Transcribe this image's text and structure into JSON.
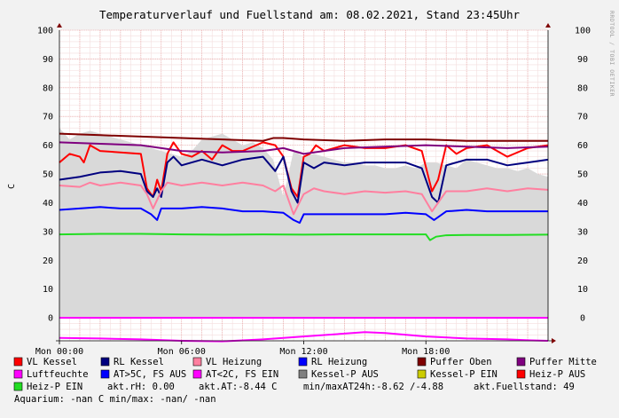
{
  "window": {
    "title": "Temperaturverlauf und Fuellstand am: 08.02.2021, Stand 23:45Uhr"
  },
  "watermark": "RRDTOOL / TOBI OETIKER",
  "chart_data": {
    "type": "line",
    "title": "Temperaturverlauf und Fuellstand am: 08.02.2021, Stand 23:45Uhr",
    "ylabel": "C",
    "ylim": [
      -8,
      100
    ],
    "xlim": [
      0,
      24
    ],
    "yticks": [
      0,
      10,
      20,
      30,
      40,
      50,
      60,
      70,
      80,
      90,
      100
    ],
    "yticks_right": [
      0,
      10,
      20,
      30,
      40,
      50,
      60,
      70,
      80,
      90,
      100
    ],
    "xticks": [
      {
        "x": 0,
        "label": "Mon 00:00"
      },
      {
        "x": 6,
        "label": "Mon 06:00"
      },
      {
        "x": 12,
        "label": "Mon 12:00"
      },
      {
        "x": 18,
        "label": "Mon 18:00"
      }
    ],
    "grid": true,
    "legend_position": "bottom",
    "fill": {
      "name": "Fuellstand",
      "color": "#d9d9d9",
      "x": [
        0,
        0.5,
        1,
        1.5,
        2,
        2.5,
        3,
        3.5,
        4,
        4.5,
        5,
        5.5,
        6,
        6.5,
        7,
        7.5,
        8,
        8.5,
        9,
        9.5,
        10,
        10.5,
        11,
        11.5,
        12,
        12.5,
        13,
        13.5,
        14,
        14.5,
        15,
        15.5,
        16,
        16.5,
        17,
        17.5,
        18,
        18.5,
        19,
        19.5,
        20,
        20.5,
        21,
        21.5,
        22,
        22.5,
        23,
        23.5,
        24
      ],
      "values": [
        66,
        62,
        64,
        65,
        64,
        63,
        62,
        61,
        60,
        59,
        58,
        57,
        56,
        58,
        62,
        63,
        64,
        62,
        60,
        61,
        59,
        55,
        42,
        58,
        56,
        57,
        56,
        55,
        54,
        54,
        53,
        53,
        52,
        52,
        53,
        52,
        54,
        54,
        53,
        52,
        55,
        54,
        53,
        52,
        52,
        51,
        52,
        50,
        49
      ]
    },
    "series": [
      {
        "name": "VL Kessel",
        "color": "#ff0000",
        "width": 2,
        "x": [
          0,
          0.5,
          1,
          1.2,
          1.5,
          2,
          3,
          4,
          4.3,
          4.6,
          4.8,
          5,
          5.3,
          5.6,
          6,
          6.5,
          7,
          7.5,
          8,
          8.5,
          9,
          10,
          10.6,
          11,
          11.4,
          11.7,
          12,
          12.3,
          12.6,
          13,
          13.5,
          14,
          15,
          16,
          17,
          17.8,
          18.3,
          18.6,
          19,
          19.5,
          20,
          21,
          22,
          23,
          24
        ],
        "values": [
          54,
          57,
          56,
          54,
          60,
          58,
          57.5,
          57,
          45,
          42,
          48,
          44,
          57,
          61,
          57,
          56,
          58,
          55,
          60,
          58,
          58,
          61,
          60,
          56,
          45,
          42,
          56,
          57,
          60,
          58,
          59,
          60,
          59,
          59,
          60,
          58,
          44,
          48,
          60,
          57,
          59,
          60,
          56,
          59,
          60
        ]
      },
      {
        "name": "RL Kessel",
        "color": "#00007f",
        "width": 2,
        "x": [
          0,
          1,
          2,
          3,
          4,
          4.3,
          4.6,
          4.8,
          5,
          5.3,
          5.6,
          6,
          7,
          8,
          9,
          10,
          10.6,
          11,
          11.4,
          11.7,
          12,
          12.5,
          13,
          14,
          15,
          16,
          17,
          17.8,
          18.3,
          18.6,
          19,
          20,
          21,
          22,
          23,
          24
        ],
        "values": [
          48,
          49,
          50.5,
          51,
          50,
          44,
          42,
          45,
          42,
          54,
          56,
          53,
          55,
          53,
          55,
          56,
          51,
          56,
          44,
          40,
          54,
          52,
          54,
          53,
          54,
          54,
          54,
          52,
          42,
          40,
          53,
          55,
          55,
          53,
          54,
          55
        ]
      },
      {
        "name": "VL Heizung",
        "color": "#ff7f9f",
        "width": 2,
        "x": [
          0,
          1,
          1.5,
          2,
          3,
          4,
          4.3,
          4.6,
          5,
          5.3,
          6,
          7,
          8,
          9,
          10,
          10.6,
          11,
          11.5,
          12,
          12.5,
          13,
          14,
          15,
          16,
          17,
          17.8,
          18.3,
          18.6,
          19,
          20,
          21,
          22,
          23,
          24
        ],
        "values": [
          46,
          45.5,
          47,
          46,
          47,
          46,
          43,
          38,
          44,
          47,
          46,
          47,
          46,
          47,
          46,
          44,
          46,
          36,
          43,
          45,
          44,
          43,
          44,
          43.5,
          44,
          43,
          37,
          40,
          44,
          44,
          45,
          44,
          45,
          44.5
        ]
      },
      {
        "name": "RL Heizung",
        "color": "#0000ff",
        "width": 2,
        "x": [
          0,
          1,
          2,
          3,
          4,
          4.5,
          4.8,
          5,
          6,
          7,
          8,
          9,
          10,
          11,
          11.5,
          11.8,
          12,
          13,
          14,
          15,
          16,
          17,
          18,
          18.4,
          18.6,
          19,
          20,
          21,
          22,
          23,
          24
        ],
        "values": [
          37.5,
          38,
          38.5,
          38,
          38,
          36,
          34,
          38,
          38,
          38.5,
          38,
          37,
          37,
          36.5,
          34,
          33,
          36,
          36,
          36,
          36,
          36,
          36.5,
          36,
          34,
          35,
          37,
          37.5,
          37,
          37,
          37,
          37
        ]
      },
      {
        "name": "Puffer Oben",
        "color": "#7f0000",
        "width": 2,
        "x": [
          0,
          2,
          4,
          6,
          8,
          10,
          10.5,
          11,
          12,
          14,
          16,
          18,
          20,
          22,
          24
        ],
        "values": [
          64,
          63.5,
          63,
          62.5,
          62,
          61.5,
          62.5,
          62.5,
          62,
          61.5,
          62,
          62,
          61.5,
          61.5,
          61.5
        ]
      },
      {
        "name": "Puffer Mitte",
        "color": "#7f007f",
        "width": 2,
        "x": [
          0,
          2,
          4,
          5,
          6,
          8,
          10,
          11,
          12,
          14,
          16,
          18,
          20,
          22,
          24
        ],
        "values": [
          61,
          60.5,
          60,
          59,
          58,
          57.5,
          58,
          59,
          57,
          59,
          59.5,
          60,
          59.5,
          59,
          59.5
        ]
      },
      {
        "name": "Luftfeuchte",
        "color": "#ff00ff",
        "width": 2,
        "x": [
          0,
          2,
          4,
          6,
          8,
          10,
          12,
          14,
          15,
          16,
          18,
          20,
          22,
          23,
          24
        ],
        "values": [
          -7,
          -7.2,
          -7.5,
          -8,
          -8.2,
          -7.5,
          -6.5,
          -5.5,
          -5,
          -5.3,
          -6.5,
          -7.2,
          -7.5,
          -7.8,
          -8
        ]
      },
      {
        "name": "Heiz-P EIN",
        "color": "#22dd22",
        "width": 2,
        "x": [
          0,
          2,
          4,
          6,
          8,
          10,
          12,
          14,
          16,
          18,
          18.2,
          18.5,
          19,
          20,
          22,
          24
        ],
        "values": [
          29,
          29.2,
          29.2,
          29,
          28.9,
          29,
          28.9,
          29,
          29,
          29,
          27,
          28.2,
          28.7,
          28.8,
          28.8,
          28.9
        ]
      },
      {
        "name": "AT<2C, FS EIN",
        "color": "#ff00ff",
        "width": 2,
        "x": [
          0,
          24
        ],
        "values": [
          0,
          0
        ]
      }
    ]
  },
  "legend": {
    "rows": [
      [
        {
          "label": "VL Kessel",
          "color": "#ff0000"
        },
        {
          "label": "RL Kessel",
          "color": "#00007f"
        },
        {
          "label": "VL Heizung",
          "color": "#ff7f9f"
        },
        {
          "label": "RL Heizung",
          "color": "#0000ff"
        },
        {
          "label": "Puffer Oben",
          "color": "#7f0000"
        },
        {
          "label": "Puffer Mitte",
          "color": "#7f007f"
        }
      ],
      [
        {
          "label": "Luftfeuchte",
          "color": "#ff00ff"
        },
        {
          "label": "AT>5C, FS AUS",
          "color": "#0000ff"
        },
        {
          "label": "AT<2C, FS EIN",
          "color": "#ff00ff"
        },
        {
          "label": "Kessel-P AUS",
          "color": "#7f7f7f"
        },
        {
          "label": "Kessel-P EIN",
          "color": "#cccc00"
        },
        {
          "label": "Heiz-P AUS",
          "color": "#ff0000"
        }
      ]
    ],
    "row3_item": {
      "label": "Heiz-P EIN",
      "color": "#22dd22"
    },
    "stats": {
      "rh": "akt.rH: 0.00",
      "at": "akt.AT:-8.44 C",
      "minmax": "min/maxAT24h:-8.62 /-4.88",
      "fill": "akt.Fuellstand:   49"
    },
    "aquarium": "Aquarium: -nan C  min/max: -nan/ -nan"
  }
}
